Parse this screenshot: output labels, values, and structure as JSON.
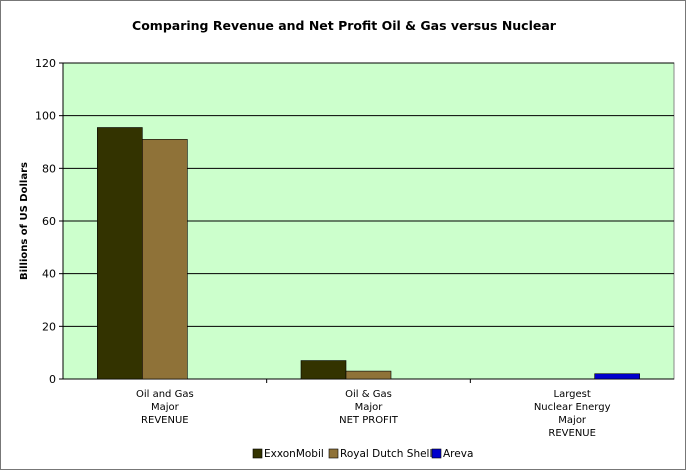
{
  "chart_data": {
    "type": "bar",
    "title": "Comparing Revenue and Net Profit Oil & Gas versus Nuclear",
    "xlabel": "",
    "ylabel": "Billions of US Dollars",
    "ylim": [
      0,
      120
    ],
    "yticks": [
      0,
      20,
      40,
      60,
      80,
      100,
      120
    ],
    "grid": true,
    "legend_position": "bottom",
    "categories": [
      [
        "Oil and Gas",
        "Major",
        "REVENUE"
      ],
      [
        "Oil & Gas",
        "Major",
        "NET PROFIT"
      ],
      [
        "Largest",
        "Nuclear Energy",
        "Major",
        "REVENUE"
      ]
    ],
    "series": [
      {
        "name": "ExxonMobil",
        "color": "#333300",
        "values": [
          95.5,
          7,
          null
        ]
      },
      {
        "name": "Royal Dutch Shell",
        "color": "#8f7238",
        "values": [
          91,
          3,
          null
        ]
      },
      {
        "name": "Areva",
        "color": "#0000cc",
        "values": [
          null,
          null,
          2
        ]
      }
    ],
    "plot_background": "#ccffcc"
  }
}
